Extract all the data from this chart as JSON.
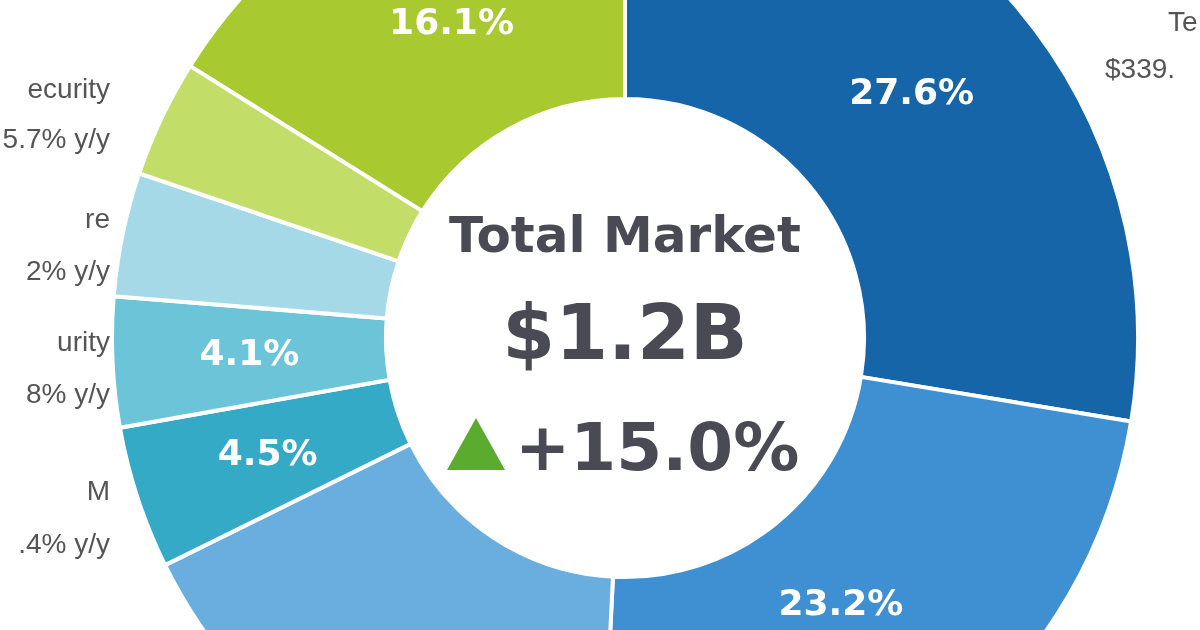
{
  "chart_data": {
    "type": "donut",
    "title": "Total Market",
    "subtitle": "$1.2B",
    "categories": [
      "Te",
      null,
      null,
      "M",
      "urity",
      "re",
      "ecurity",
      null
    ],
    "values": [
      27.6,
      23.2,
      16.9,
      4.5,
      4.1,
      3.9,
      3.7,
      16.1
    ],
    "value_labels": [
      "27.6%",
      "23.2%",
      null,
      "4.5%",
      "4.1%",
      null,
      null,
      "16.1%"
    ],
    "colors": [
      "#1565a8",
      "#3f90d2",
      "#6aaedf",
      "#35aac6",
      "#6cc4d9",
      "#a6d9e7",
      "#c3de68",
      "#a8c930"
    ],
    "annotations": [
      "$339.",
      ".4% y/y",
      "8% y/y",
      "2% y/y",
      "5.7% y/y",
      "+15.0%"
    ]
  }
}
